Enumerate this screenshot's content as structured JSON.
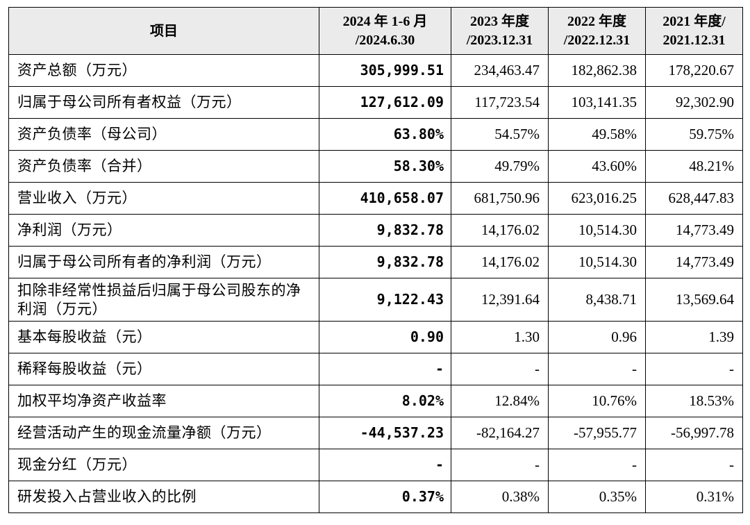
{
  "header": {
    "item": "项目",
    "period_2024_line1": "2024 年 1-6 月",
    "period_2024_line2": "/2024.6.30",
    "period_2023_line1": "2023 年度",
    "period_2023_line2": "/2023.12.31",
    "period_2022_line1": "2022 年度",
    "period_2022_line2": "/2022.12.31",
    "period_2021_line1": "2021 年度/",
    "period_2021_line2": "2021.12.31"
  },
  "rows": [
    {
      "label": "资产总额（万元）",
      "v2024": "305,999.51",
      "v2023": "234,463.47",
      "v2022": "182,862.38",
      "v2021": "178,220.67"
    },
    {
      "label": "归属于母公司所有者权益（万元）",
      "v2024": "127,612.09",
      "v2023": "117,723.54",
      "v2022": "103,141.35",
      "v2021": "92,302.90"
    },
    {
      "label": "资产负债率（母公司）",
      "v2024": "63.80%",
      "v2023": "54.57%",
      "v2022": "49.58%",
      "v2021": "59.75%"
    },
    {
      "label": "资产负债率（合并）",
      "v2024": "58.30%",
      "v2023": "49.79%",
      "v2022": "43.60%",
      "v2021": "48.21%"
    },
    {
      "label": "营业收入（万元）",
      "v2024": "410,658.07",
      "v2023": "681,750.96",
      "v2022": "623,016.25",
      "v2021": "628,447.83"
    },
    {
      "label": "净利润（万元）",
      "v2024": "9,832.78",
      "v2023": "14,176.02",
      "v2022": "10,514.30",
      "v2021": "14,773.49"
    },
    {
      "label": "归属于母公司所有者的净利润（万元）",
      "v2024": "9,832.78",
      "v2023": "14,176.02",
      "v2022": "10,514.30",
      "v2021": "14,773.49"
    },
    {
      "label": "扣除非经常性损益后归属于母公司股东的净利润（万元）",
      "v2024": "9,122.43",
      "v2023": "12,391.64",
      "v2022": "8,438.71",
      "v2021": "13,569.64"
    },
    {
      "label": "基本每股收益（元）",
      "v2024": "0.90",
      "v2023": "1.30",
      "v2022": "0.96",
      "v2021": "1.39"
    },
    {
      "label": "稀释每股收益（元）",
      "v2024": "-",
      "v2023": "-",
      "v2022": "-",
      "v2021": "-"
    },
    {
      "label": "加权平均净资产收益率",
      "v2024": "8.02%",
      "v2023": "12.84%",
      "v2022": "10.76%",
      "v2021": "18.53%"
    },
    {
      "label": "经营活动产生的现金流量净额（万元）",
      "v2024": "-44,537.23",
      "v2023": "-82,164.27",
      "v2022": "-57,955.77",
      "v2021": "-56,997.78"
    },
    {
      "label": "现金分红（万元）",
      "v2024": "-",
      "v2023": "-",
      "v2022": "-",
      "v2021": "-"
    },
    {
      "label": "研发投入占营业收入的比例",
      "v2024": "0.37%",
      "v2023": "0.38%",
      "v2022": "0.35%",
      "v2021": "0.31%"
    }
  ]
}
